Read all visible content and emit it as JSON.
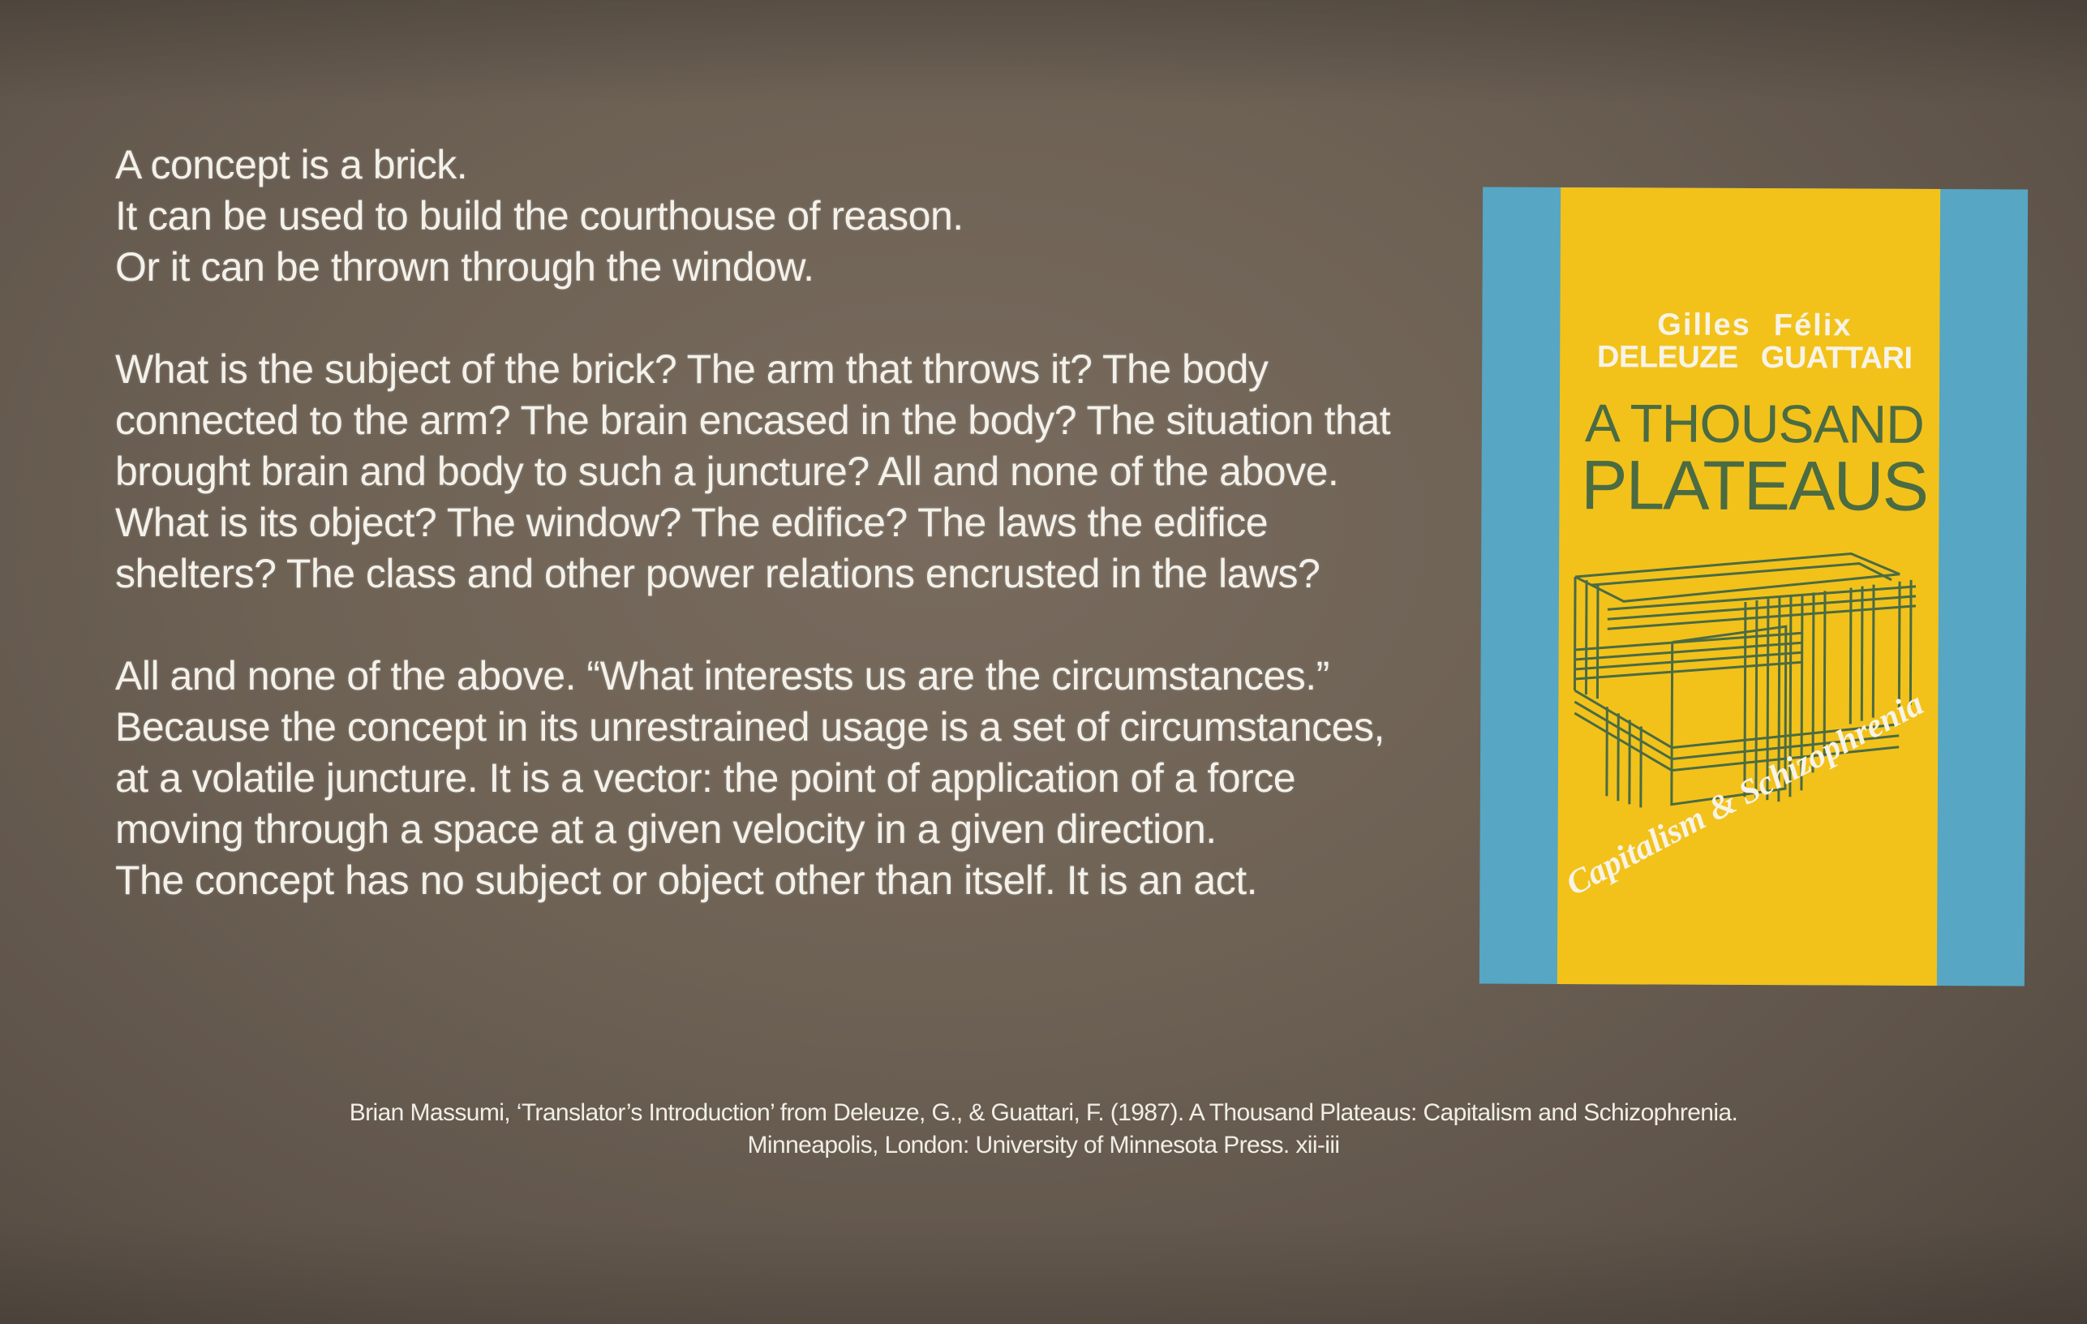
{
  "quote": {
    "para1": [
      "A concept is a brick.",
      "It can be used to build the courthouse of reason.",
      "Or it can be thrown through the window."
    ],
    "para2": [
      "What is the subject of the brick? The arm that throws it? The body",
      "connected to the arm? The brain encased in the body? The situation that",
      "brought brain and body to such a juncture? All and none of the above.",
      "What is its object? The window? The edifice? The laws the edifice",
      "shelters? The class and other power relations encrusted in the laws?"
    ],
    "para3": [
      "All and none of the above. “What interests us are the circumstances.”",
      "Because the concept in its unrestrained usage is a set of circumstances,",
      "at a volatile juncture. It is a vector: the point of application of a force",
      "moving through a space at a given velocity in a given direction.",
      "The concept has no subject or object other than itself. It is an act."
    ]
  },
  "book_cover": {
    "author_first_1": "Gilles",
    "author_first_2": "Félix",
    "author_last_1": "DELEUZE",
    "author_last_2": "GUATTARI",
    "title_line_1": "A THOUSAND",
    "title_line_2": "PLATEAUS",
    "subtitle": "Capitalism & Schizophrenia",
    "colors": {
      "blue": "#56a6c4",
      "yellow": "#f2c21a",
      "green": "#4b6b43"
    }
  },
  "citation": {
    "line1": "Brian Massumi, ‘Translator’s Introduction’ from Deleuze, G., & Guattari, F. (1987). A Thousand Plateaus: Capitalism and Schizophrenia.",
    "line2": "Minneapolis, London: University of Minnesota Press. xii-iii"
  }
}
